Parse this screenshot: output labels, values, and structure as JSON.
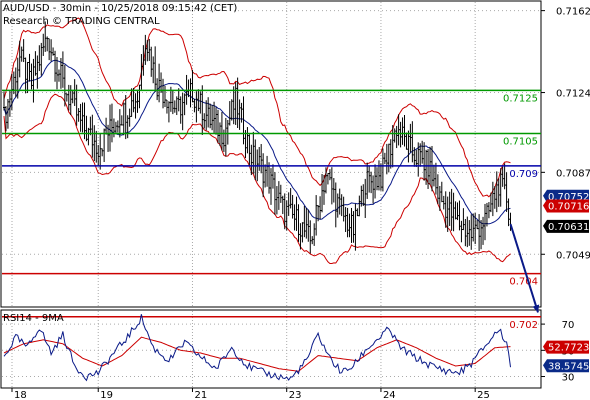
{
  "header": {
    "line1": "AUD/USD - 30min - 10/25/2018 09:15:42 (CET)",
    "line2": "Research © TRADING CENTRAL"
  },
  "chart_data": [
    {
      "type": "candlestick",
      "ylim": [
        0.7025,
        0.7166
      ],
      "y_ticks": [
        0.7162,
        0.7124,
        0.7087,
        0.7049
      ],
      "x_tick_labels": [
        {
          "label": "18",
          "at": 0
        },
        {
          "label": "19",
          "at": 48
        },
        {
          "label": "21",
          "at": 96
        },
        {
          "label": "23",
          "at": 144
        },
        {
          "label": "24",
          "at": 192
        },
        {
          "label": "25",
          "at": 240
        }
      ],
      "price_path": [
        [
          0,
          0.7112
        ],
        [
          8,
          0.714
        ],
        [
          14,
          0.7128
        ],
        [
          22,
          0.715
        ],
        [
          30,
          0.7128
        ],
        [
          40,
          0.7108
        ],
        [
          48,
          0.7099
        ],
        [
          58,
          0.7112
        ],
        [
          68,
          0.7122
        ],
        [
          72,
          0.715
        ],
        [
          78,
          0.7128
        ],
        [
          88,
          0.7116
        ],
        [
          96,
          0.7124
        ],
        [
          104,
          0.7112
        ],
        [
          112,
          0.7105
        ],
        [
          118,
          0.712
        ],
        [
          126,
          0.7095
        ],
        [
          134,
          0.7086
        ],
        [
          142,
          0.707
        ],
        [
          150,
          0.7064
        ],
        [
          156,
          0.7055
        ],
        [
          164,
          0.7086
        ],
        [
          172,
          0.7068
        ],
        [
          178,
          0.706
        ],
        [
          184,
          0.7082
        ],
        [
          192,
          0.7085
        ],
        [
          200,
          0.7108
        ],
        [
          208,
          0.7096
        ],
        [
          216,
          0.709
        ],
        [
          222,
          0.7075
        ],
        [
          230,
          0.7065
        ],
        [
          238,
          0.7058
        ],
        [
          246,
          0.7066
        ],
        [
          252,
          0.7082
        ],
        [
          256,
          0.7075
        ],
        [
          258,
          0.7063
        ]
      ],
      "levels": [
        {
          "value": 0.7125,
          "label": "0.7125",
          "color": "#009900"
        },
        {
          "value": 0.7105,
          "label": "0.7105",
          "color": "#009900"
        },
        {
          "value": 0.709,
          "label": "0.709",
          "color": "#0000aa"
        },
        {
          "value": 0.704,
          "label": "0.704",
          "color": "#cc0000"
        },
        {
          "value": 0.702,
          "label": "0.702",
          "color": "#cc0000"
        }
      ],
      "price_tags": [
        {
          "value": 0.70752,
          "label": "0.70752",
          "color": "#0a2a88"
        },
        {
          "value": 0.70716,
          "label": "0.70716",
          "color": "#cc0000"
        },
        {
          "value": 0.70631,
          "label": "0.70631",
          "color": "#000000"
        }
      ],
      "forecast_arrow": {
        "from": [
          258,
          0.7063
        ],
        "to": [
          272,
          0.7022
        ],
        "color": "#0a1a88"
      },
      "colors": {
        "candles": "#000000",
        "bollinger": "#cc0000",
        "moving_average": "#0a1a88",
        "grid": "#aaaaaa"
      }
    },
    {
      "type": "line",
      "title": "RSI14 - 9MA",
      "ylim": [
        22,
        80
      ],
      "y_ticks": [
        70,
        50,
        30
      ],
      "rsi_path": [
        [
          0,
          45
        ],
        [
          6,
          60
        ],
        [
          12,
          52
        ],
        [
          18,
          68
        ],
        [
          24,
          48
        ],
        [
          30,
          62
        ],
        [
          36,
          38
        ],
        [
          42,
          30
        ],
        [
          48,
          33
        ],
        [
          56,
          48
        ],
        [
          64,
          62
        ],
        [
          70,
          75
        ],
        [
          76,
          52
        ],
        [
          84,
          42
        ],
        [
          92,
          56
        ],
        [
          100,
          45
        ],
        [
          108,
          36
        ],
        [
          116,
          52
        ],
        [
          124,
          38
        ],
        [
          132,
          33
        ],
        [
          140,
          30
        ],
        [
          146,
          28
        ],
        [
          154,
          42
        ],
        [
          160,
          62
        ],
        [
          166,
          44
        ],
        [
          172,
          33
        ],
        [
          178,
          38
        ],
        [
          184,
          50
        ],
        [
          190,
          58
        ],
        [
          196,
          66
        ],
        [
          202,
          52
        ],
        [
          210,
          44
        ],
        [
          218,
          38
        ],
        [
          226,
          34
        ],
        [
          232,
          33
        ],
        [
          238,
          40
        ],
        [
          246,
          55
        ],
        [
          252,
          66
        ],
        [
          256,
          56
        ],
        [
          258,
          38.6
        ]
      ],
      "ma_path": [
        [
          0,
          48
        ],
        [
          10,
          55
        ],
        [
          20,
          58
        ],
        [
          30,
          55
        ],
        [
          40,
          44
        ],
        [
          50,
          38
        ],
        [
          60,
          46
        ],
        [
          70,
          60
        ],
        [
          80,
          56
        ],
        [
          90,
          50
        ],
        [
          100,
          48
        ],
        [
          110,
          44
        ],
        [
          120,
          44
        ],
        [
          130,
          40
        ],
        [
          140,
          36
        ],
        [
          150,
          34
        ],
        [
          160,
          46
        ],
        [
          170,
          44
        ],
        [
          180,
          42
        ],
        [
          190,
          52
        ],
        [
          200,
          58
        ],
        [
          210,
          52
        ],
        [
          220,
          44
        ],
        [
          230,
          38
        ],
        [
          240,
          40
        ],
        [
          250,
          52
        ],
        [
          258,
          52.8
        ]
      ],
      "value_tags": [
        {
          "value": 52.7723,
          "label": "52.7723",
          "color": "#cc0000"
        },
        {
          "value": 38.5745,
          "label": "38.5745",
          "color": "#0a2a88"
        }
      ],
      "colors": {
        "rsi": "#0a1a88",
        "ma": "#cc0000"
      }
    }
  ]
}
